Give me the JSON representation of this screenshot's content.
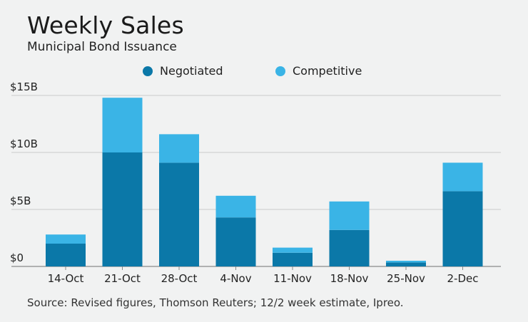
{
  "chart_data": {
    "type": "bar",
    "stacked": true,
    "title": "Weekly Sales",
    "subtitle": "Municipal Bond Issuance",
    "categories": [
      "14-Oct",
      "21-Oct",
      "28-Oct",
      "4-Nov",
      "11-Nov",
      "18-Nov",
      "25-Nov",
      "2-Dec"
    ],
    "series": [
      {
        "name": "Negotiated",
        "color": "#0b78a8",
        "values": [
          2.0,
          10.0,
          9.1,
          4.3,
          1.2,
          3.2,
          0.35,
          6.6
        ]
      },
      {
        "name": "Competitive",
        "color": "#3ab4e6",
        "values": [
          0.8,
          4.8,
          2.5,
          1.9,
          0.45,
          2.5,
          0.15,
          2.5
        ]
      }
    ],
    "y_ticks": [
      {
        "value": 0,
        "label": "$0"
      },
      {
        "value": 5,
        "label": "$5B"
      },
      {
        "value": 10,
        "label": "$10B"
      },
      {
        "value": 15,
        "label": "$15B"
      }
    ],
    "ylim": [
      0,
      15
    ],
    "grid": true,
    "legend_position": "top-center",
    "source": "Source: Revised figures, Thomson Reuters; 12/2 week estimate, Ipreo."
  }
}
